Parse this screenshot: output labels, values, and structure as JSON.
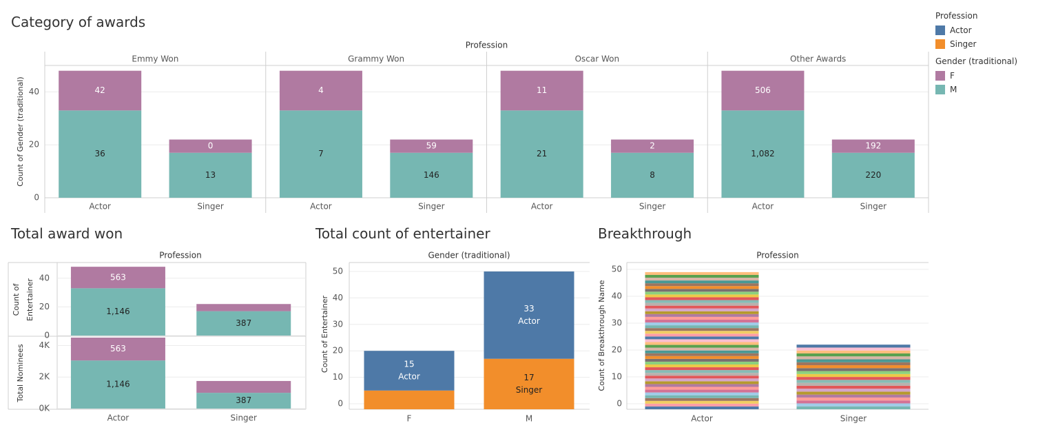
{
  "colors": {
    "actor": "#4e79a7",
    "singer": "#f28e2b",
    "female": "#b07aa1",
    "male": "#76b7b2"
  },
  "titles": {
    "awards": "Category of awards",
    "total_award": "Total award won",
    "entertainer": "Total count of entertainer",
    "breakthrough": "Breakthrough"
  },
  "legend": {
    "profession_title": "Profession",
    "profession_items": [
      {
        "label": "Actor",
        "color": "#4e79a7"
      },
      {
        "label": "Singer",
        "color": "#f28e2b"
      }
    ],
    "gender_title": "Gender (traditional)",
    "gender_items": [
      {
        "label": "F",
        "color": "#b07aa1"
      },
      {
        "label": "M",
        "color": "#76b7b2"
      }
    ]
  },
  "chart_data": [
    {
      "id": "category_of_awards",
      "type": "bar",
      "stacked": true,
      "title": "Category of awards",
      "column_header": "Profession",
      "ylabel": "Count of Gender (traditional)",
      "ylim": [
        0,
        50
      ],
      "yticks": [
        0,
        20,
        40
      ],
      "panels": [
        {
          "name": "Emmy Won",
          "categories": [
            "Actor",
            "Singer"
          ],
          "series": [
            {
              "name": "M",
              "values": [
                33,
                17
              ],
              "labels": [
                "36",
                "13"
              ]
            },
            {
              "name": "F",
              "values": [
                15,
                5
              ],
              "labels": [
                "42",
                "0"
              ]
            }
          ]
        },
        {
          "name": "Grammy Won",
          "categories": [
            "Actor",
            "Singer"
          ],
          "series": [
            {
              "name": "M",
              "values": [
                33,
                17
              ],
              "labels": [
                "7",
                "146"
              ]
            },
            {
              "name": "F",
              "values": [
                15,
                5
              ],
              "labels": [
                "4",
                "59"
              ]
            }
          ]
        },
        {
          "name": "Oscar Won",
          "categories": [
            "Actor",
            "Singer"
          ],
          "series": [
            {
              "name": "M",
              "values": [
                33,
                17
              ],
              "labels": [
                "21",
                "8"
              ]
            },
            {
              "name": "F",
              "values": [
                15,
                5
              ],
              "labels": [
                "11",
                "2"
              ]
            }
          ]
        },
        {
          "name": "Other Awards",
          "categories": [
            "Actor",
            "Singer"
          ],
          "series": [
            {
              "name": "M",
              "values": [
                33,
                17
              ],
              "labels": [
                "1,082",
                "220"
              ]
            },
            {
              "name": "F",
              "values": [
                15,
                5
              ],
              "labels": [
                "506",
                "192"
              ]
            }
          ]
        }
      ]
    },
    {
      "id": "total_award_won",
      "type": "bar",
      "stacked": true,
      "title": "Total award won",
      "column_header": "Profession",
      "categories": [
        "Actor",
        "Singer"
      ],
      "rows": [
        {
          "ylabel": "Count of Entertainer",
          "ylim": [
            0,
            50
          ],
          "yticks": [
            {
              "v": 0,
              "t": "0"
            },
            {
              "v": 20,
              "t": "20"
            },
            {
              "v": 40,
              "t": "40"
            }
          ],
          "series": [
            {
              "name": "M",
              "values": [
                33,
                17
              ],
              "labels": [
                "1,146",
                "387"
              ]
            },
            {
              "name": "F",
              "values": [
                15,
                5
              ],
              "labels": [
                "563",
                ""
              ]
            }
          ]
        },
        {
          "ylabel": "Total Nominees",
          "ylim": [
            0,
            4500
          ],
          "yticks": [
            {
              "v": 0,
              "t": "0K"
            },
            {
              "v": 2000,
              "t": "2K"
            },
            {
              "v": 4000,
              "t": "4K"
            }
          ],
          "series": [
            {
              "name": "M",
              "values": [
                3050,
                1000
              ],
              "labels": [
                "1,146",
                "387"
              ]
            },
            {
              "name": "F",
              "values": [
                1450,
                750
              ],
              "labels": [
                "563",
                ""
              ]
            }
          ]
        }
      ]
    },
    {
      "id": "total_count_of_entertainer",
      "type": "bar",
      "stacked": true,
      "title": "Total count of entertainer",
      "column_header": "Gender (traditional)",
      "ylabel": "Count of Entertainer",
      "ylim": [
        0,
        50
      ],
      "yticks": [
        0,
        10,
        20,
        30,
        40,
        50
      ],
      "categories": [
        "F",
        "M"
      ],
      "series": [
        {
          "name": "Singer",
          "values": [
            5,
            17
          ],
          "labels": [
            "",
            "17"
          ],
          "sublabels": [
            "",
            "Singer"
          ]
        },
        {
          "name": "Actor",
          "values": [
            15,
            33
          ],
          "labels": [
            "15",
            "33"
          ],
          "sublabels": [
            "Actor",
            "Actor"
          ]
        }
      ]
    },
    {
      "id": "breakthrough",
      "type": "bar",
      "stacked": true,
      "title": "Breakthrough",
      "column_header": "Profession",
      "ylabel": "Count of Breakthrough Name",
      "ylim": [
        0,
        50
      ],
      "yticks": [
        0,
        10,
        20,
        30,
        40,
        50
      ],
      "categories": [
        "Actor",
        "Singer"
      ],
      "values": [
        49,
        22
      ],
      "segment_colors": [
        "#4e79a7",
        "#f28e2b",
        "#e15759",
        "#76b7b2",
        "#59a14f",
        "#edc948",
        "#b07aa1",
        "#ff9da7",
        "#9c755f",
        "#bab0ac",
        "#a0cbe8",
        "#ffbe7d",
        "#8cd17d",
        "#b6992d",
        "#f1ce63",
        "#499894",
        "#86bcb6",
        "#d37295",
        "#fabfd2",
        "#79706e",
        "#d4a6c8",
        "#9d7660",
        "#d7b5a6",
        "#e15759",
        "#ff9d9a"
      ]
    }
  ]
}
